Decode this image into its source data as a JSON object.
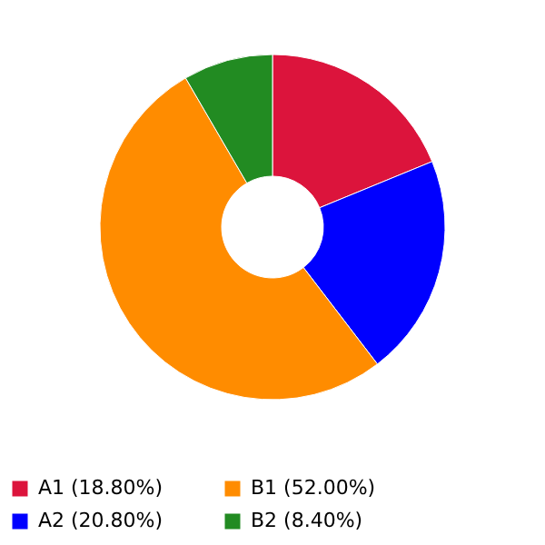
{
  "chart_data": {
    "type": "donut",
    "categories": [
      "A1 (18.80%)",
      "A2 (20.80%)",
      "B1 (52.00%)",
      "B2 (8.40%)"
    ],
    "values": [
      18.8,
      20.8,
      52.0,
      8.4
    ],
    "colors": [
      "#dc143c",
      "#0000ff",
      "#ff8c00",
      "#228b22"
    ],
    "legend": "bottom"
  }
}
